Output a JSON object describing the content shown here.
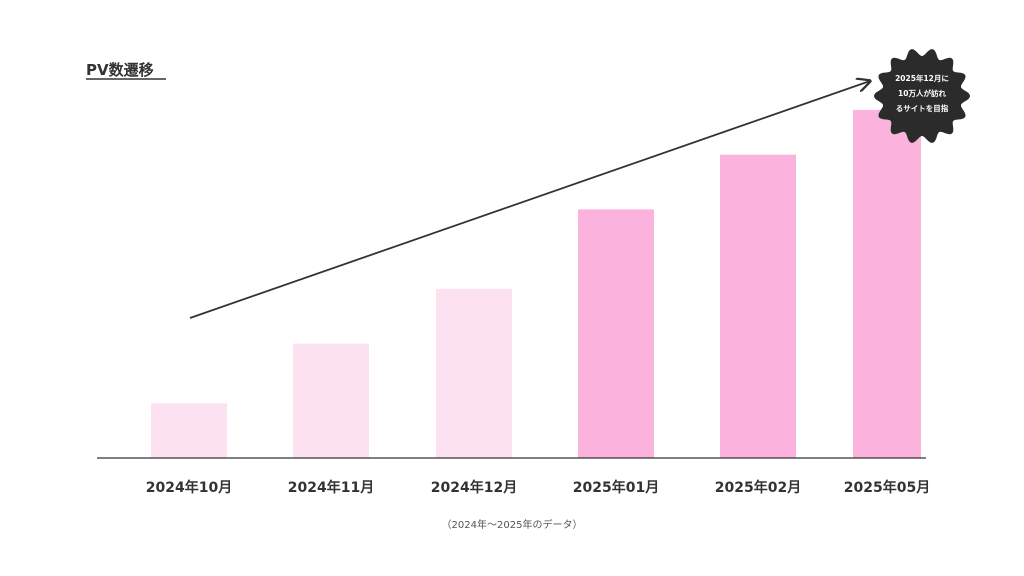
{
  "chart_data": {
    "type": "bar",
    "title": "PV数遷移",
    "categories": [
      "2024年10月",
      "2024年11月",
      "2024年12月",
      "2025年01月",
      "2025年02月",
      "2025年05月"
    ],
    "values": [
      11,
      23,
      34,
      50,
      61,
      70
    ],
    "bar_colors": [
      "#fce1f0",
      "#fce1f0",
      "#fce1f0",
      "#fbb2dc",
      "#fbb2dc",
      "#fbb2dc"
    ],
    "ylim": [
      0,
      72
    ],
    "xlabel": "",
    "ylabel": "",
    "caption": "（2024年〜2025年のデータ）",
    "badge_lines": [
      "2025年12月に",
      "10万人が訪れ",
      "るサイトを目指"
    ],
    "colors": {
      "badge": "#2b2b2b",
      "trend_arrow": "#333333",
      "axis": "#333333",
      "text": "#333333"
    }
  }
}
